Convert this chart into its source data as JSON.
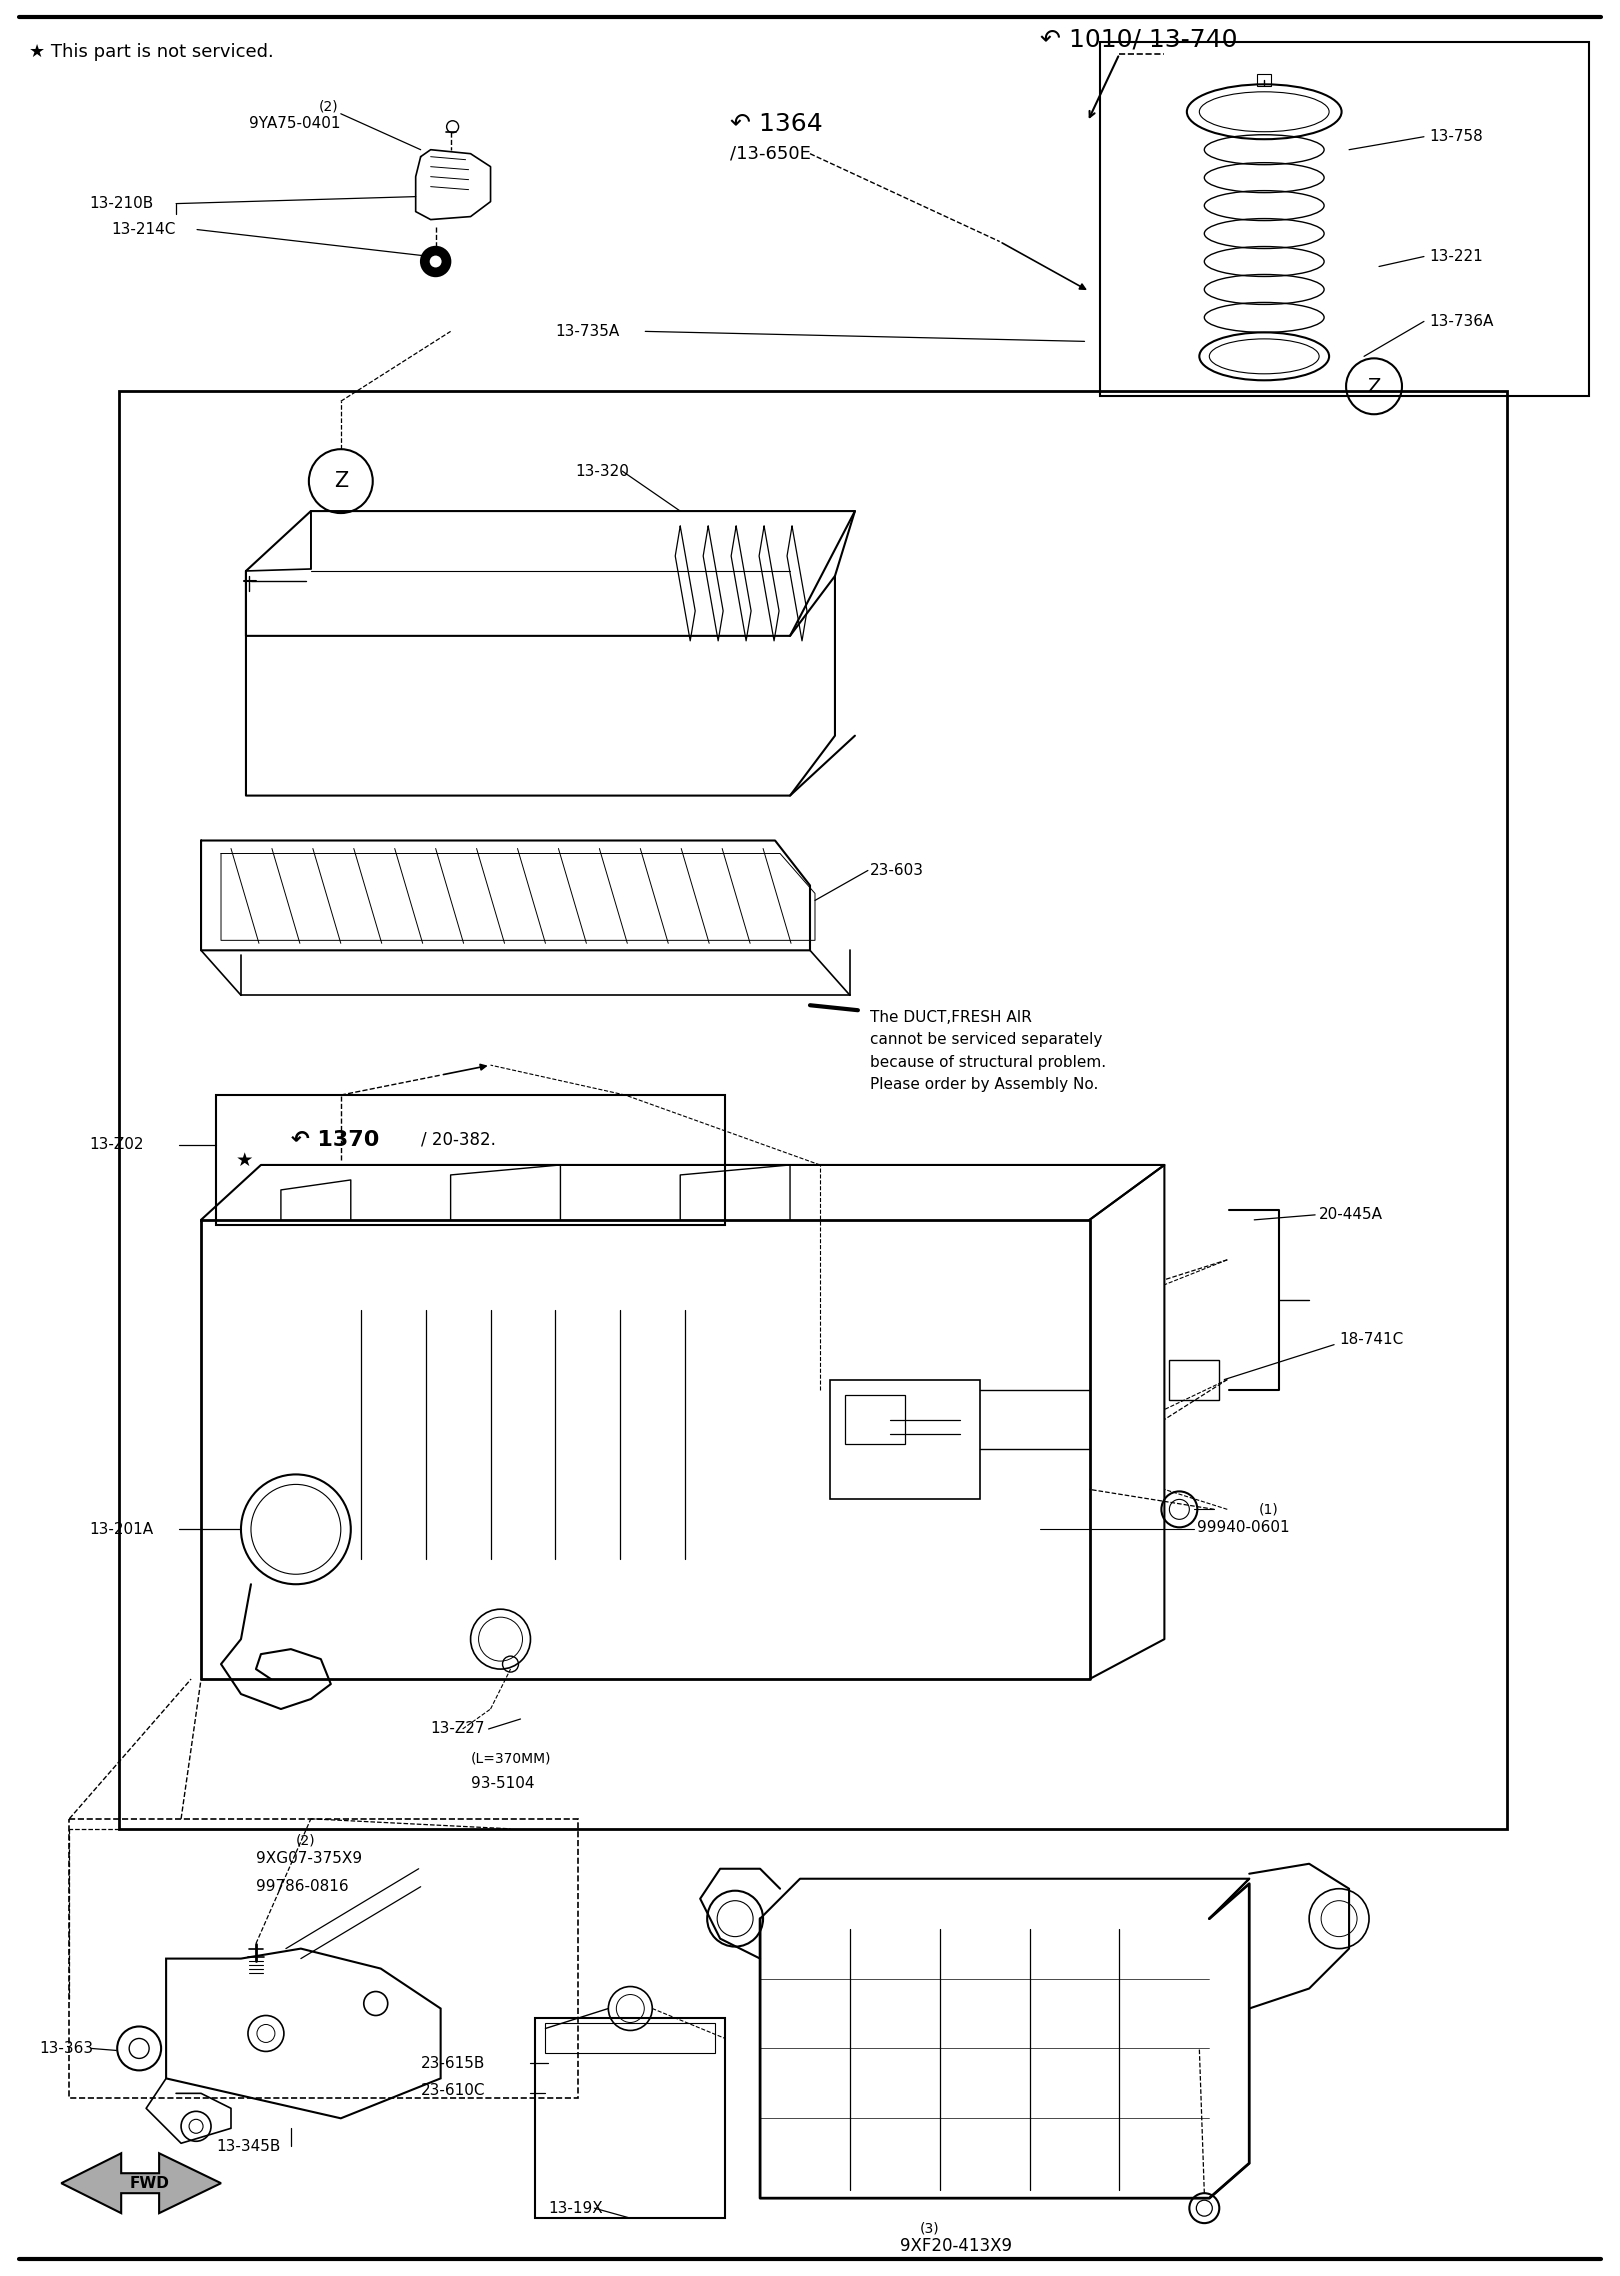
{
  "bg": "#ffffff",
  "lw": 1.5,
  "labels": {
    "note": "★ This part is not serviced.",
    "part_1010": "↶ 1010/ 13-740",
    "part_1364_a": "↶ 1364",
    "part_1364_b": "/13-650E",
    "part_9ya75": "9YA75-0401",
    "part_9ya75_qty": "(2)",
    "part_13210b": "13-210B",
    "part_13214c": "13-214C",
    "part_13735a": "13-735A",
    "part_13758": "13-758",
    "part_13221": "13-221",
    "part_13736a": "13-736A",
    "part_13320": "13-320",
    "part_23603": "23-603",
    "duct_note": "The DUCT,FRESH AIR\ncannot be serviced separately\nbecause of structural problem.\nPlease order by Assembly No.",
    "part_1370_a": "↶ 1370",
    "part_1370_b": "/ 20-382.",
    "part_13z02": "13-Z02",
    "part_20445a": "20-445A",
    "part_18741c": "18-741C",
    "part_99940_qty": "(1)",
    "part_99940": "99940-0601",
    "part_13201a": "13-201A",
    "part_13z27": "13-Z27",
    "part_l370": "(L=370MM)",
    "part_93_5104": "93-5104",
    "part_13363": "13-363",
    "part_9xg07_qty": "(2)",
    "part_9xg07": "9XG07-375X9",
    "part_99786": "99786-0816",
    "part_13345b": "13-345B",
    "part_23615b": "23-615B",
    "part_23610c": "23-610C",
    "part_1319x": "13-19X",
    "part_9xf20_qty": "(3)",
    "part_9xf20": "9XF20-413X9",
    "fwd": "FWD"
  }
}
